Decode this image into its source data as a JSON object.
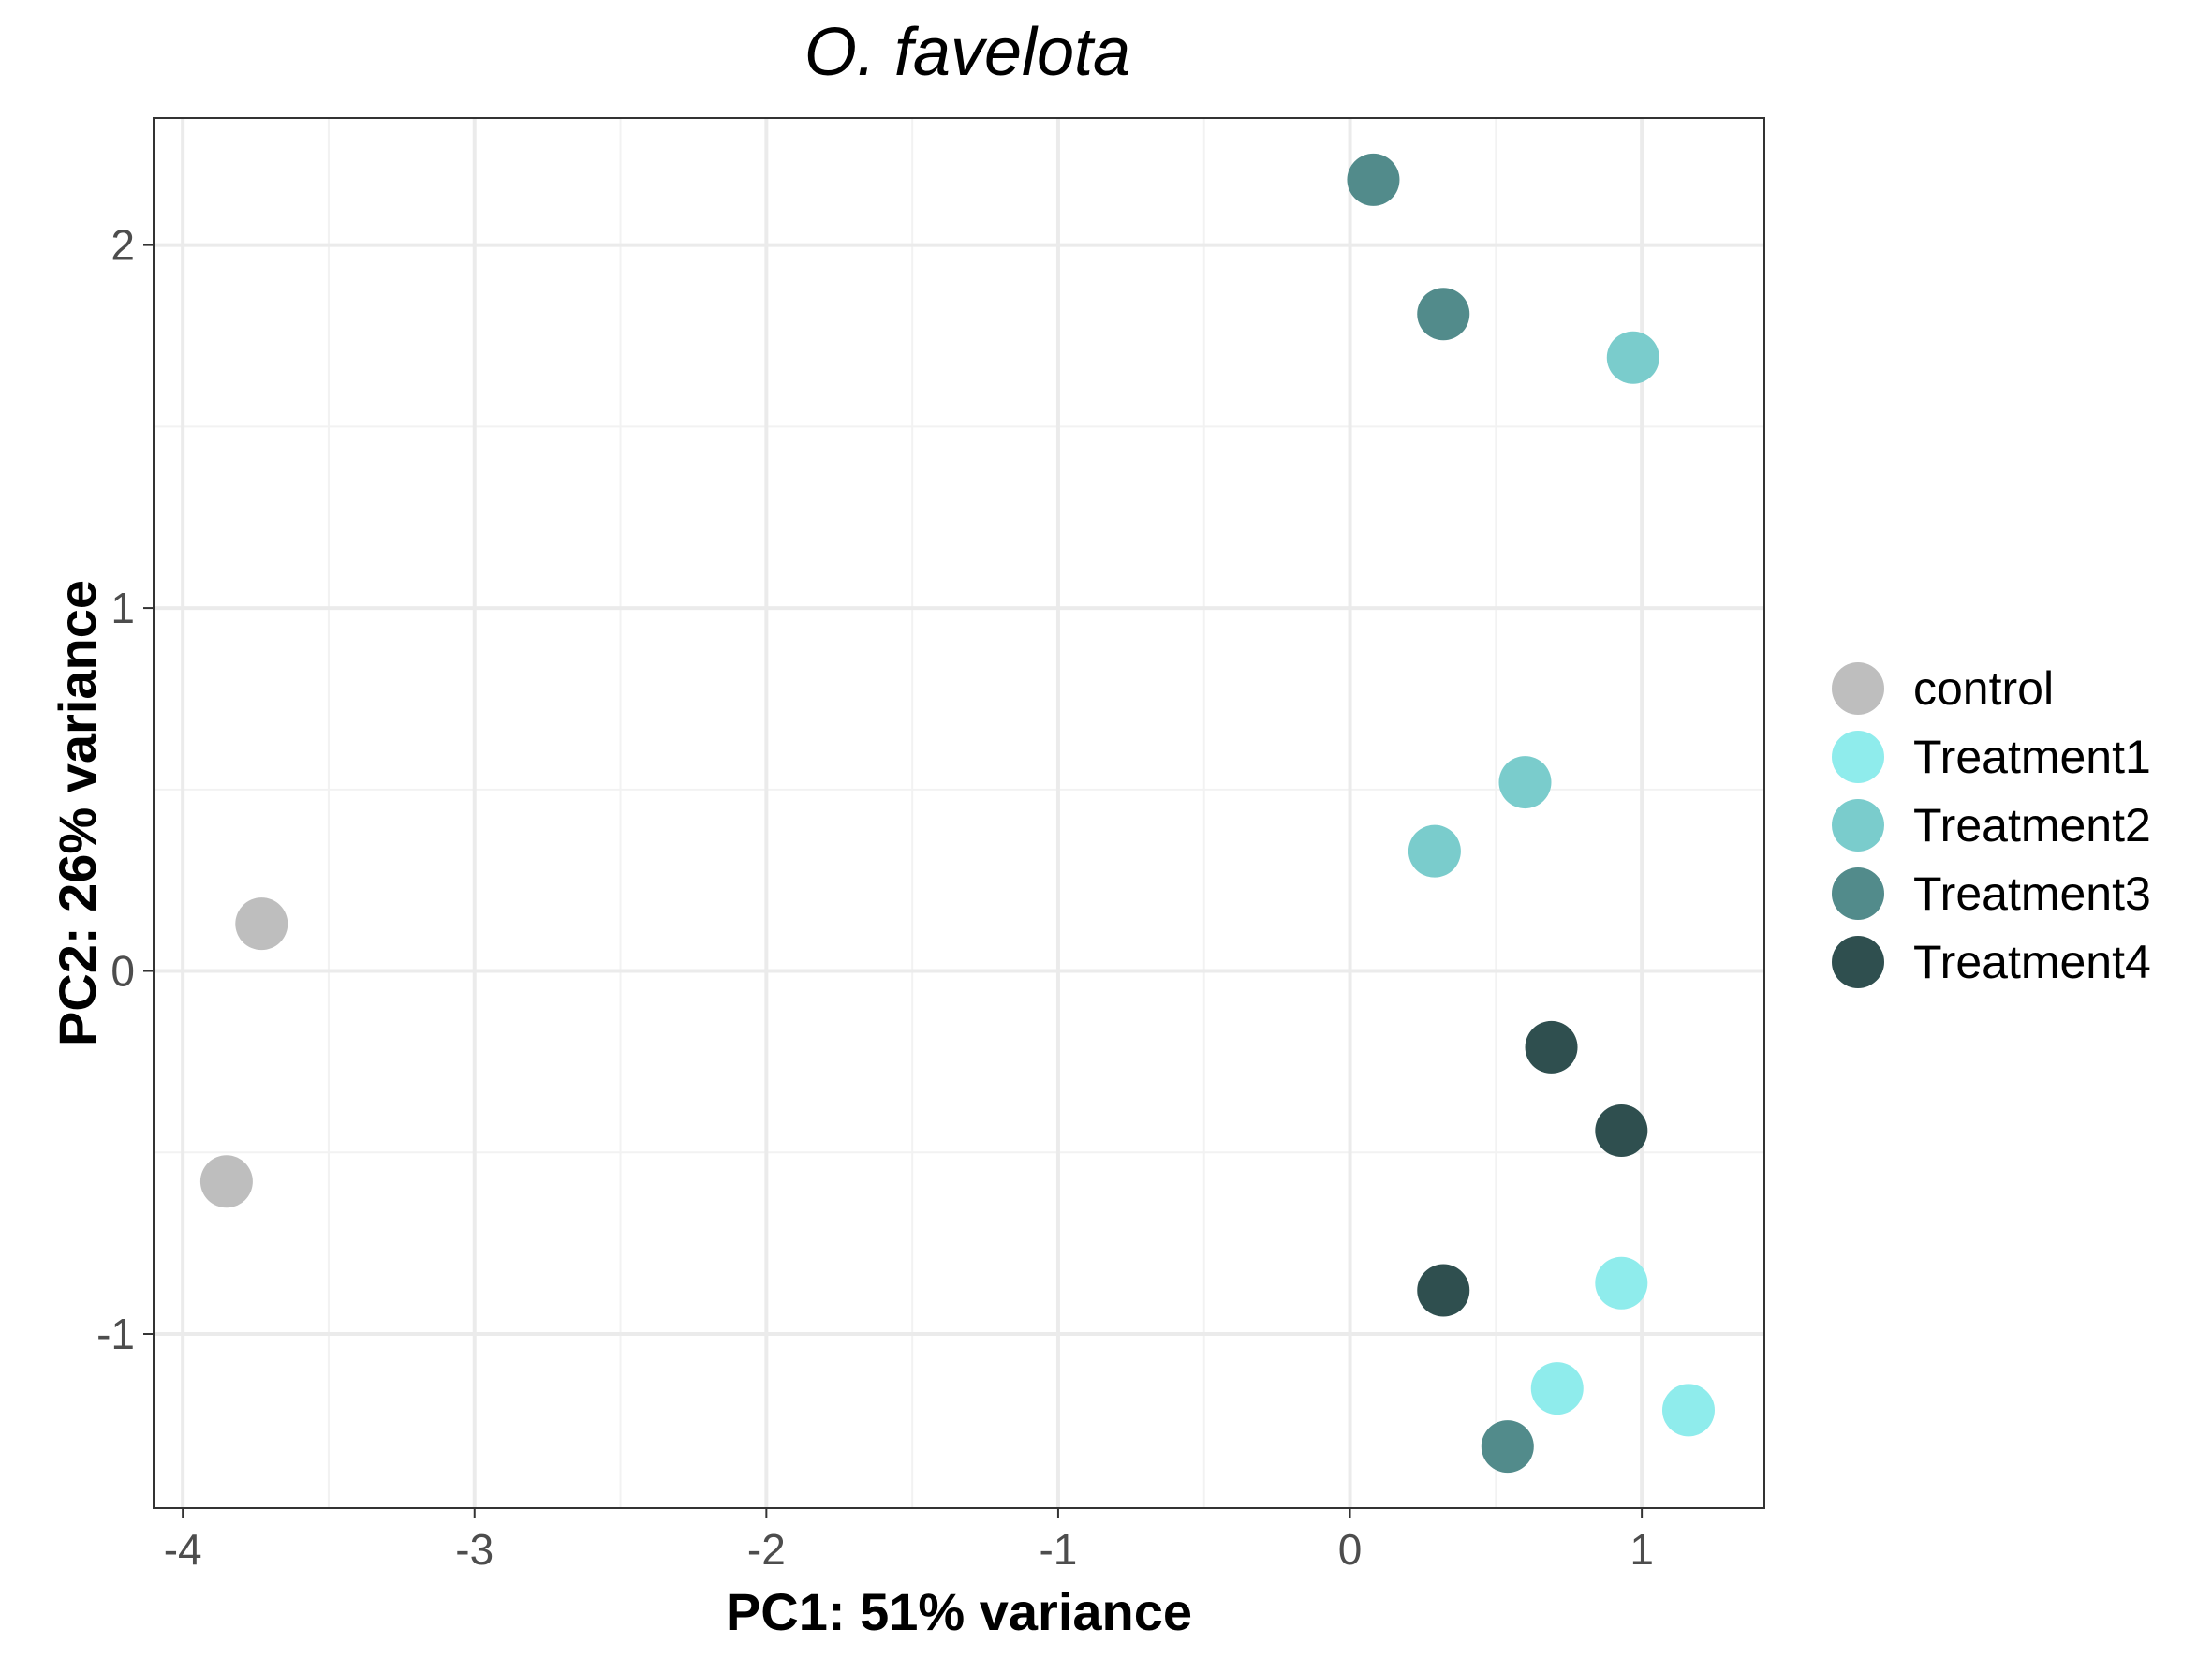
{
  "chart_data": {
    "type": "scatter",
    "title": "O. favelota",
    "xlabel": "PC1: 51% variance",
    "ylabel": "PC2: 26% variance",
    "xlim": [
      -4.1,
      1.42
    ],
    "ylim": [
      -1.48,
      2.35
    ],
    "x_major_ticks": [
      -4,
      -3,
      -2,
      -1,
      0,
      1
    ],
    "x_tick_labels": [
      "-4",
      "-3",
      "-2",
      "-1",
      "0",
      "1"
    ],
    "x_minor_ticks": [
      -3.5,
      -2.5,
      -1.5,
      -0.5,
      0.5
    ],
    "y_major_ticks": [
      -1,
      0,
      1,
      2
    ],
    "y_tick_labels": [
      "-1",
      "0",
      "1",
      "2"
    ],
    "y_minor_ticks": [
      -0.5,
      0.5,
      1.5
    ],
    "grid": true,
    "legend_position": "right",
    "series": [
      {
        "name": "control",
        "color": "#bebebe",
        "points": [
          [
            -3.73,
            0.13
          ],
          [
            -3.85,
            -0.58
          ]
        ]
      },
      {
        "name": "Treatment1",
        "color": "#8fecec",
        "points": [
          [
            0.93,
            -0.86
          ],
          [
            0.71,
            -1.15
          ],
          [
            1.16,
            -1.21
          ]
        ]
      },
      {
        "name": "Treatment2",
        "color": "#7acccc",
        "points": [
          [
            0.97,
            1.69
          ],
          [
            0.6,
            0.52
          ],
          [
            0.29,
            0.33
          ]
        ]
      },
      {
        "name": "Treatment3",
        "color": "#528b8b",
        "points": [
          [
            0.08,
            2.18
          ],
          [
            0.32,
            1.81
          ],
          [
            0.54,
            -1.31
          ]
        ]
      },
      {
        "name": "Treatment4",
        "color": "#2f4f4f",
        "points": [
          [
            0.69,
            -0.21
          ],
          [
            0.93,
            -0.44
          ],
          [
            0.32,
            -0.88
          ]
        ]
      }
    ]
  }
}
